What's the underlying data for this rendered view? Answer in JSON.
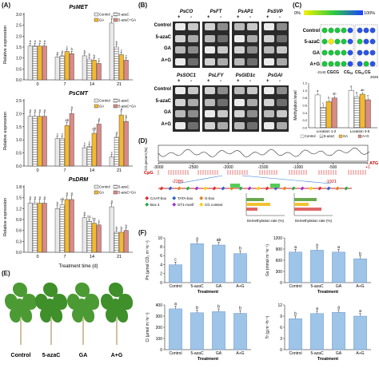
{
  "panels": {
    "A": "(A)",
    "B": "(B)",
    "C": "(C)",
    "D": "(D)",
    "E": "(E)",
    "F": "(F)"
  },
  "panelA": {
    "legend": [
      "Control",
      "5-azaC",
      "GA",
      "5-azaC+GA"
    ],
    "colors": [
      "#e9e9e9",
      "#ffffff",
      "#f5b92d",
      "#d98b86"
    ],
    "xlabel": "Treatment time (d)",
    "ylabel": "Relative expression",
    "categories": [
      "0",
      "7",
      "14",
      "21"
    ],
    "charts": [
      {
        "title": "PsMET",
        "ylim": [
          0,
          3
        ],
        "yticks": [
          "0.0",
          "0.5",
          "1.0",
          "1.5",
          "2.0",
          "2.5",
          "3.0"
        ],
        "letters": [
          [
            "a",
            "a",
            "a",
            "a"
          ],
          [
            "a",
            "a",
            "c",
            "b"
          ],
          [
            "b",
            "b",
            "b",
            "c"
          ],
          [
            "a",
            "b",
            "c",
            "c"
          ]
        ]
      },
      {
        "title": "PsCMT",
        "ylim": [
          0,
          2.5
        ],
        "yticks": [
          "0.0",
          "0.5",
          "1.0",
          "1.5",
          "2.0",
          "2.5"
        ],
        "letters": [
          [
            "a",
            "a",
            "a",
            "a"
          ],
          [
            "c",
            "c",
            "ab",
            "a"
          ],
          [
            "c",
            "c",
            "ab",
            "a"
          ],
          [
            "c",
            "d",
            "a",
            "b"
          ]
        ]
      },
      {
        "title": "PsDRM",
        "ylim": [
          0,
          1.8
        ],
        "yticks": [
          "0.0",
          "0.3",
          "0.6",
          "0.9",
          "1.2",
          "1.5",
          "1.8"
        ],
        "letters": [
          [
            "a",
            "a",
            "a",
            "a"
          ],
          [
            "b",
            "ab",
            "a",
            "a"
          ],
          [
            "b",
            "bc",
            "bc",
            "c"
          ],
          [
            "a",
            "b",
            "b",
            "b"
          ]
        ]
      }
    ]
  },
  "chart_data": [
    {
      "type": "bar",
      "title": "PsMET",
      "categories": [
        "0",
        "7",
        "14",
        "21"
      ],
      "ylabel": "Relative expression",
      "xlabel": "Treatment time (d)",
      "ylim": [
        0,
        3
      ],
      "series": [
        {
          "name": "Control",
          "values": [
            1.55,
            1.05,
            1.1,
            2.6
          ]
        },
        {
          "name": "5-azaC",
          "values": [
            1.55,
            1.1,
            0.95,
            1.5
          ]
        },
        {
          "name": "GA",
          "values": [
            1.55,
            1.3,
            0.9,
            1.15
          ]
        },
        {
          "name": "5-azaC+GA",
          "values": [
            1.55,
            1.2,
            0.75,
            0.9
          ]
        }
      ]
    },
    {
      "type": "bar",
      "title": "PsCMT",
      "categories": [
        "0",
        "7",
        "14",
        "21"
      ],
      "ylabel": "Relative expression",
      "xlabel": "Treatment time (d)",
      "ylim": [
        0,
        2.5
      ],
      "series": [
        {
          "name": "Control",
          "values": [
            1.9,
            1.05,
            0.7,
            0.35
          ]
        },
        {
          "name": "5-azaC",
          "values": [
            1.9,
            1.05,
            0.75,
            1.1
          ]
        },
        {
          "name": "GA",
          "values": [
            1.9,
            1.55,
            1.25,
            1.95
          ]
        },
        {
          "name": "5-azaC+GA",
          "values": [
            1.9,
            2.0,
            1.6,
            1.7
          ]
        }
      ]
    },
    {
      "type": "bar",
      "title": "PsDRM",
      "categories": [
        "0",
        "7",
        "14",
        "21"
      ],
      "ylabel": "Relative expression",
      "xlabel": "Treatment time (d)",
      "ylim": [
        0,
        1.8
      ],
      "series": [
        {
          "name": "Control",
          "values": [
            1.35,
            1.2,
            0.95,
            1.25
          ]
        },
        {
          "name": "5-azaC",
          "values": [
            1.35,
            1.3,
            0.85,
            0.55
          ]
        },
        {
          "name": "GA",
          "values": [
            1.35,
            1.45,
            0.8,
            0.55
          ]
        },
        {
          "name": "5-azaC+GA",
          "values": [
            1.35,
            1.45,
            0.75,
            0.6
          ]
        }
      ]
    },
    {
      "type": "bar",
      "title": "",
      "categories": [
        "Location 1-2",
        "Location 3-5"
      ],
      "ylabel": "Methylation level",
      "ylim": [
        0,
        1.2
      ],
      "series": [
        {
          "name": "Control",
          "values": [
            0.88,
            1.0
          ]
        },
        {
          "name": "5-azaC",
          "values": [
            0.55,
            0.83
          ]
        },
        {
          "name": "GA",
          "values": [
            0.7,
            0.9
          ]
        },
        {
          "name": "A+G",
          "values": [
            0.8,
            0.75
          ]
        }
      ]
    },
    {
      "type": "bar",
      "title": "",
      "categories": [
        "Control",
        "5-azaC",
        "GA",
        "A+G"
      ],
      "ylabel": "Pn (μmol CO2 m-2s-1)",
      "xlabel": "Treatment",
      "ylim": [
        0,
        10
      ],
      "series": [
        {
          "name": "",
          "values": [
            4.0,
            8.7,
            8.4,
            6.5
          ]
        }
      ]
    },
    {
      "type": "bar",
      "title": "",
      "categories": [
        "Control",
        "5-azaC",
        "GA",
        "A+G"
      ],
      "ylabel": "Gs (mmol m-2s-1)",
      "xlabel": "Treatment",
      "ylim": [
        0,
        1200
      ],
      "series": [
        {
          "name": "",
          "values": [
            820,
            870,
            820,
            640
          ]
        }
      ]
    },
    {
      "type": "bar",
      "title": "",
      "categories": [
        "Control",
        "5-azaC",
        "GA",
        "A+G"
      ],
      "ylabel": "Ci (μmol m-2s-1)",
      "xlabel": "Treatment",
      "ylim": [
        0,
        400
      ],
      "series": [
        {
          "name": "",
          "values": [
            365,
            330,
            340,
            325
          ]
        }
      ]
    },
    {
      "type": "bar",
      "title": "",
      "categories": [
        "Control",
        "5-azaC",
        "GA",
        "A+G"
      ],
      "ylabel": "Tr (g m-2h-1)",
      "xlabel": "Treatment",
      "ylim": [
        0,
        12
      ],
      "series": [
        {
          "name": "",
          "values": [
            8.3,
            9.7,
            10.0,
            9.0
          ]
        }
      ]
    }
  ],
  "panelB": {
    "top_genes": [
      "PsCO",
      "PsFT",
      "PsAP1",
      "PsSVP"
    ],
    "bottom_genes": [
      "PsSOC1",
      "PsLFY",
      "PsGID1c",
      "PsGAI"
    ],
    "pm": [
      "+",
      "-"
    ],
    "rows": [
      "Control",
      "5-azaC",
      "GA",
      "A+G"
    ]
  },
  "panelC": {
    "scale_min": "0%",
    "scale_max": "100%",
    "header1": "CGCG",
    "header2": "CG",
    "header2_sub": "S2",
    "header3": "CG",
    "header3_sub": "S1",
    "header4": "CG",
    "rows": [
      "Control",
      "5-azaC",
      "GA",
      "A+G"
    ],
    "pos_left": "-2142",
    "pos_right": "2026",
    "ylabel": "Methylation level",
    "yticks": [
      "0.0",
      "0.2",
      "0.4",
      "0.6",
      "0.8",
      "1.0",
      "1.2"
    ],
    "categories": [
      "Location 1-2",
      "Location 3-5"
    ],
    "legend": [
      "Control",
      "5-azaC",
      "GA",
      "A+G"
    ],
    "letters": [
      [
        "a",
        "c",
        "b",
        "ab"
      ],
      [
        "a",
        "b",
        "ab",
        "c"
      ]
    ]
  },
  "panelD": {
    "ylabel": "CG percent (%)",
    "axis": [
      "-3000",
      "-2500",
      "-2000",
      "-1500",
      "-1000",
      "-500",
      "+1"
    ],
    "cpg": "CpG",
    "atg": "ATG",
    "region_left": "-2289",
    "region_right": "-1921",
    "motifs": [
      "CAAT-box",
      "TATA-box",
      "G-box",
      "Box 4",
      "GT1-motif",
      "CG context"
    ],
    "demeth_label": "Demethylation rate (%)"
  },
  "panelE": {
    "labels": [
      "Control",
      "5-azaC",
      "GA",
      "A+G"
    ]
  },
  "panelF": {
    "xlabel": "Treatment",
    "categories": [
      "Control",
      "5-azaC",
      "GA",
      "A+G"
    ],
    "charts": [
      {
        "ylabel": "Pn (μmol CO₂ m⁻²s⁻¹)",
        "yticks": [
          "0",
          "2",
          "4",
          "6",
          "8",
          "10"
        ],
        "letters": [
          "c",
          "a",
          "ab",
          "b"
        ]
      },
      {
        "ylabel": "Gs (mmol m⁻²s⁻¹)",
        "yticks": [
          "0",
          "300",
          "600",
          "900",
          "1200"
        ],
        "letters": [
          "a",
          "a",
          "a",
          "b"
        ]
      },
      {
        "ylabel": "Ci (μmol m⁻²s⁻¹)",
        "yticks": [
          "0",
          "100",
          "200",
          "300",
          "400"
        ],
        "letters": [
          "a",
          "b",
          "b",
          "b"
        ]
      },
      {
        "ylabel": "Tr (g m⁻²h⁻¹)",
        "yticks": [
          "0",
          "3",
          "6",
          "9",
          "12"
        ],
        "letters": [
          "b",
          "a",
          "a",
          "a"
        ]
      }
    ]
  }
}
